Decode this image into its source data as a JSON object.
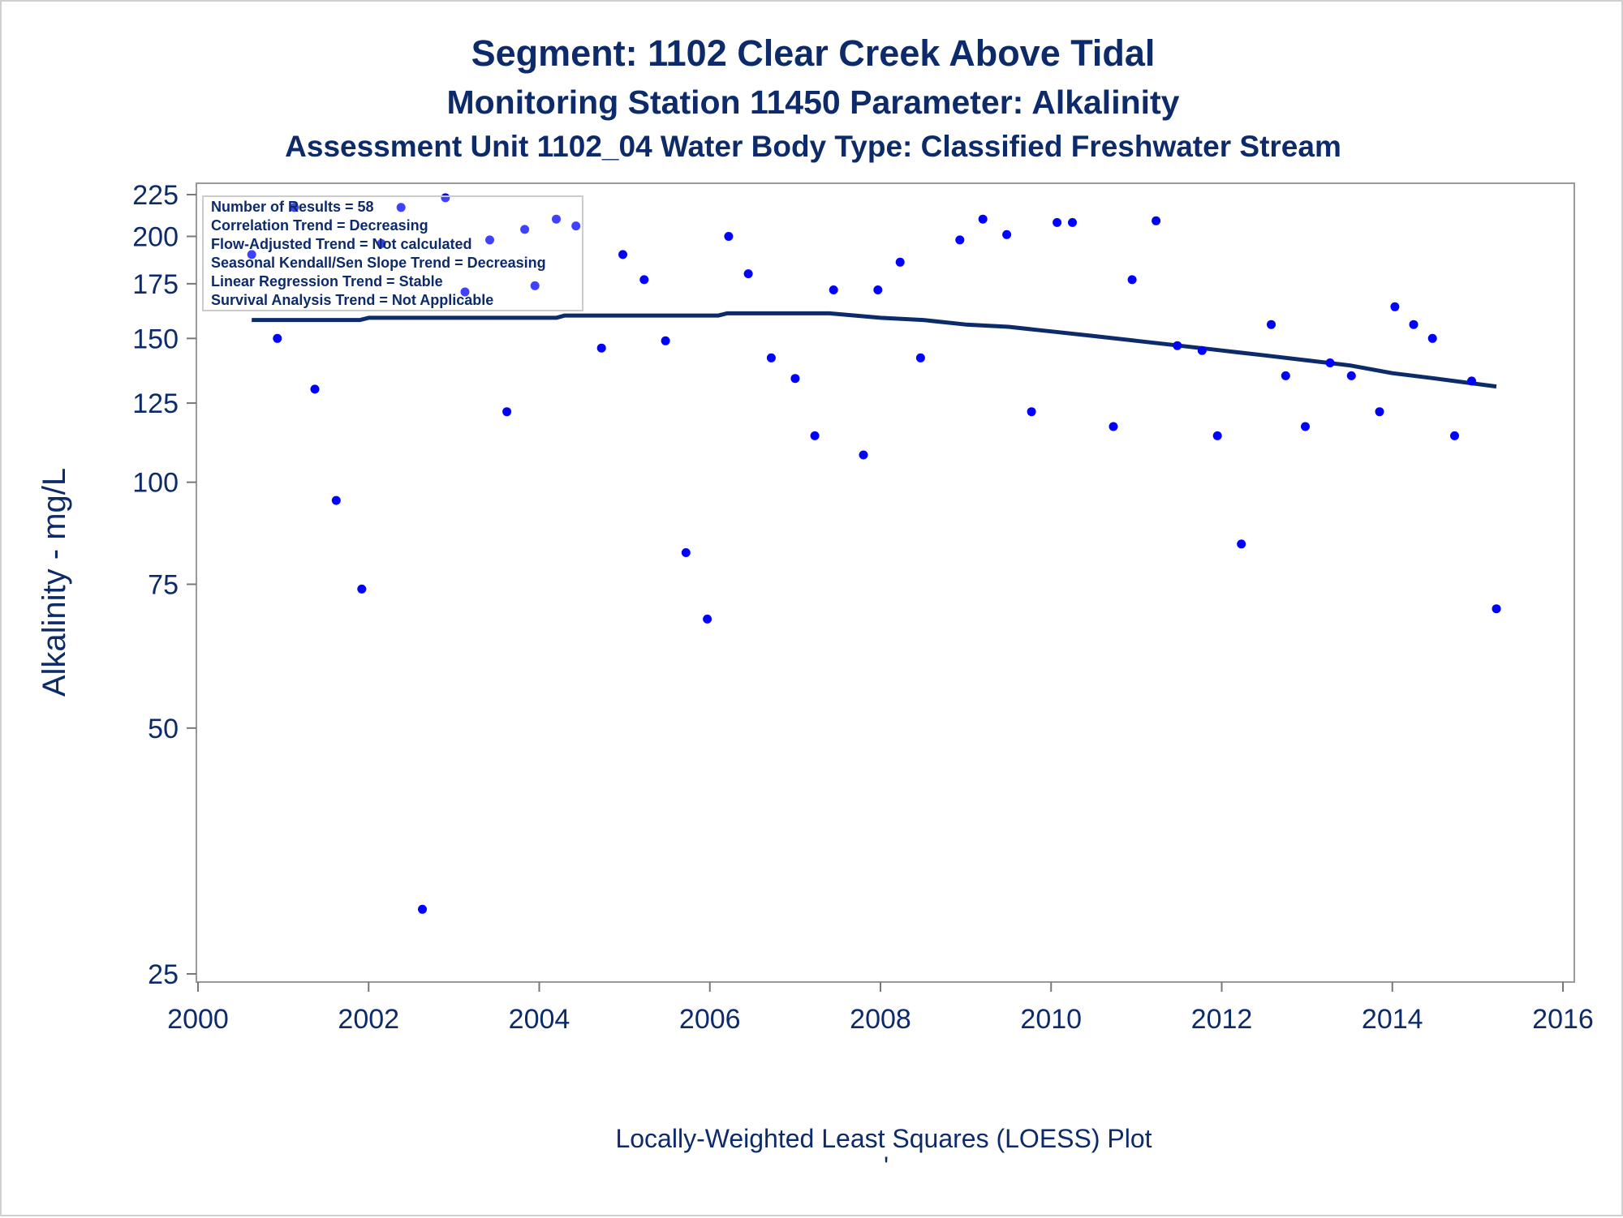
{
  "chart_data": {
    "type": "scatter",
    "title": "Segment: 1102  Clear Creek Above Tidal",
    "subtitle": "Monitoring Station 11450 Parameter: Alkalinity",
    "subtitle2": "Assessment Unit 1102_04   Water Body Type: Classified Freshwater Stream",
    "xlabel": "",
    "ylabel": "Alkalinity - mg/L",
    "footnote": "Locally-Weighted Least Squares (LOESS) Plot",
    "footnote2": "'",
    "y_scale": "log",
    "xlim": [
      2000,
      2016
    ],
    "ylim": [
      25,
      230
    ],
    "x_ticks": [
      "2000",
      "2002",
      "2004",
      "2006",
      "2008",
      "2010",
      "2012",
      "2014",
      "2016"
    ],
    "y_ticks": [
      "25",
      "50",
      "75",
      "100",
      "125",
      "150",
      "175",
      "200",
      "225"
    ],
    "legend_position": "top-left",
    "stats": [
      "Number of Results = 58",
      "Correlation Trend = Decreasing",
      "Flow-Adjusted Trend = Not calculated",
      "Seasonal Kendall/Sen Slope Trend = Decreasing",
      "Linear Regression Trend = Stable",
      "Survival Analysis Trend = Not Applicable"
    ],
    "point_color": "#0000ff",
    "line_color": "#0d2b6b",
    "points": [
      [
        2000.63,
        190
      ],
      [
        2000.93,
        150
      ],
      [
        2001.13,
        217
      ],
      [
        2001.37,
        130
      ],
      [
        2001.62,
        95
      ],
      [
        2001.92,
        74
      ],
      [
        2002.15,
        196
      ],
      [
        2002.38,
        217
      ],
      [
        2002.63,
        30
      ],
      [
        2002.9,
        223
      ],
      [
        2003.13,
        171
      ],
      [
        2003.42,
        198
      ],
      [
        2003.62,
        122
      ],
      [
        2003.83,
        204
      ],
      [
        2003.95,
        174
      ],
      [
        2004.2,
        210
      ],
      [
        2004.43,
        206
      ],
      [
        2004.73,
        146
      ],
      [
        2004.98,
        190
      ],
      [
        2005.23,
        177
      ],
      [
        2005.48,
        149
      ],
      [
        2005.72,
        82
      ],
      [
        2005.97,
        68
      ],
      [
        2006.22,
        200
      ],
      [
        2006.45,
        180
      ],
      [
        2006.72,
        142
      ],
      [
        2007.0,
        134
      ],
      [
        2007.23,
        114
      ],
      [
        2007.45,
        172
      ],
      [
        2007.8,
        108
      ],
      [
        2007.97,
        172
      ],
      [
        2008.23,
        186
      ],
      [
        2008.47,
        142
      ],
      [
        2008.93,
        198
      ],
      [
        2009.2,
        210
      ],
      [
        2009.48,
        201
      ],
      [
        2009.77,
        122
      ],
      [
        2010.07,
        208
      ],
      [
        2010.25,
        208
      ],
      [
        2010.73,
        117
      ],
      [
        2010.95,
        177
      ],
      [
        2011.23,
        209
      ],
      [
        2011.48,
        147
      ],
      [
        2011.77,
        145
      ],
      [
        2011.95,
        114
      ],
      [
        2012.23,
        84
      ],
      [
        2012.58,
        156
      ],
      [
        2012.75,
        135
      ],
      [
        2012.98,
        117
      ],
      [
        2013.27,
        140
      ],
      [
        2013.52,
        135
      ],
      [
        2013.85,
        122
      ],
      [
        2014.03,
        164
      ],
      [
        2014.25,
        156
      ],
      [
        2014.47,
        150
      ],
      [
        2014.73,
        114
      ],
      [
        2014.93,
        133
      ],
      [
        2015.22,
        70
      ]
    ],
    "loess": [
      [
        2000.63,
        158
      ],
      [
        2001.9,
        158
      ],
      [
        2002.0,
        159
      ],
      [
        2004.2,
        159
      ],
      [
        2004.3,
        160
      ],
      [
        2006.1,
        160
      ],
      [
        2006.2,
        161
      ],
      [
        2007.4,
        161
      ],
      [
        2007.7,
        160
      ],
      [
        2008.0,
        159
      ],
      [
        2008.5,
        158
      ],
      [
        2009.0,
        156
      ],
      [
        2009.5,
        155
      ],
      [
        2010.0,
        153
      ],
      [
        2010.5,
        151
      ],
      [
        2011.0,
        149
      ],
      [
        2011.5,
        147
      ],
      [
        2012.0,
        145
      ],
      [
        2012.5,
        143
      ],
      [
        2013.0,
        141
      ],
      [
        2013.5,
        139
      ],
      [
        2014.0,
        136
      ],
      [
        2014.5,
        134
      ],
      [
        2015.22,
        131
      ]
    ]
  }
}
